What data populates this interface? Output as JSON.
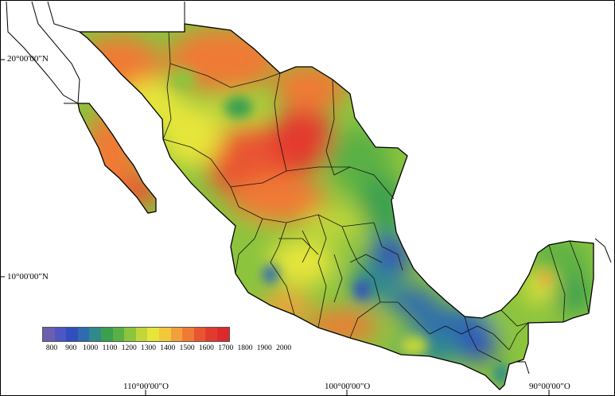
{
  "map": {
    "latitude_labels": [
      "20°00'00\"N",
      "10°00'00\"N"
    ],
    "longitude_labels": [
      "110°00'00\"O",
      "100°00'00\"O",
      "90°00'00\"O"
    ]
  },
  "legend": {
    "ticks": [
      "800",
      "900",
      "1000",
      "1100",
      "1200",
      "1300",
      "1400",
      "1500",
      "1600",
      "1700",
      "1800",
      "1900",
      "2000"
    ],
    "colors": [
      "#6b5fb0",
      "#4d56c2",
      "#2f4fbf",
      "#2f6bb0",
      "#2e8a8c",
      "#3aa04f",
      "#5ab044",
      "#8cc43e",
      "#c0d63a",
      "#e6e53a",
      "#f2c73a",
      "#f3a03a",
      "#ef7a35",
      "#e95530",
      "#e33a2f",
      "#dc2a2a"
    ]
  }
}
